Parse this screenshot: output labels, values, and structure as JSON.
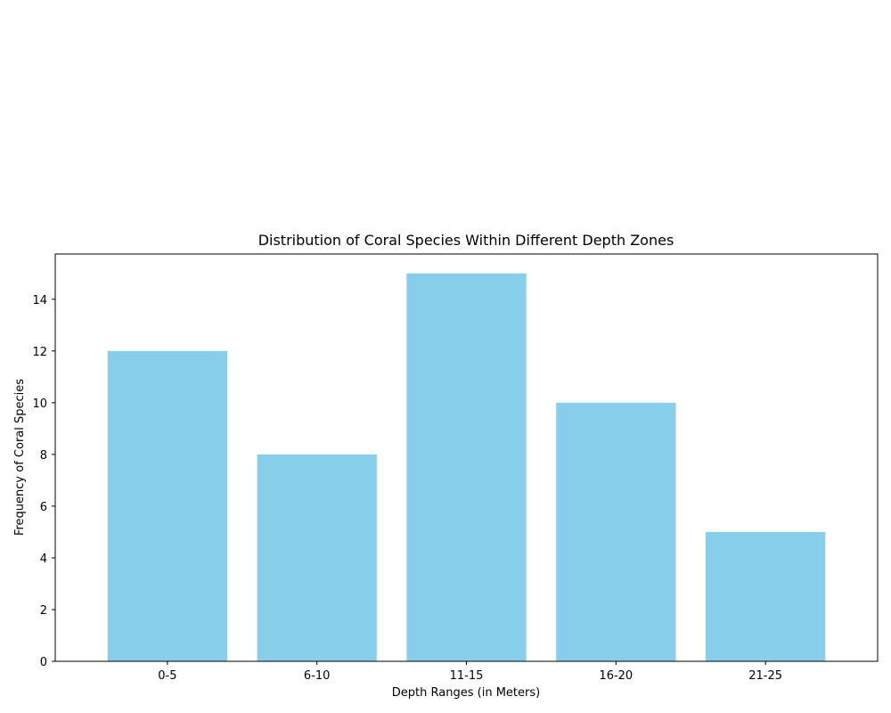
{
  "chart_data": {
    "type": "bar",
    "title": "Distribution of Coral Species Within Different Depth Zones",
    "xlabel": "Depth Ranges (in Meters)",
    "ylabel": "Frequency of Coral Species",
    "categories": [
      "0-5",
      "6-10",
      "11-15",
      "16-20",
      "21-25"
    ],
    "values": [
      12,
      8,
      15,
      10,
      5
    ],
    "ylim": [
      0,
      15.75
    ],
    "yticks": [
      0,
      2,
      4,
      6,
      8,
      10,
      12,
      14
    ],
    "bar_color": "#87ceeb",
    "grid": false,
    "legend": "none"
  }
}
